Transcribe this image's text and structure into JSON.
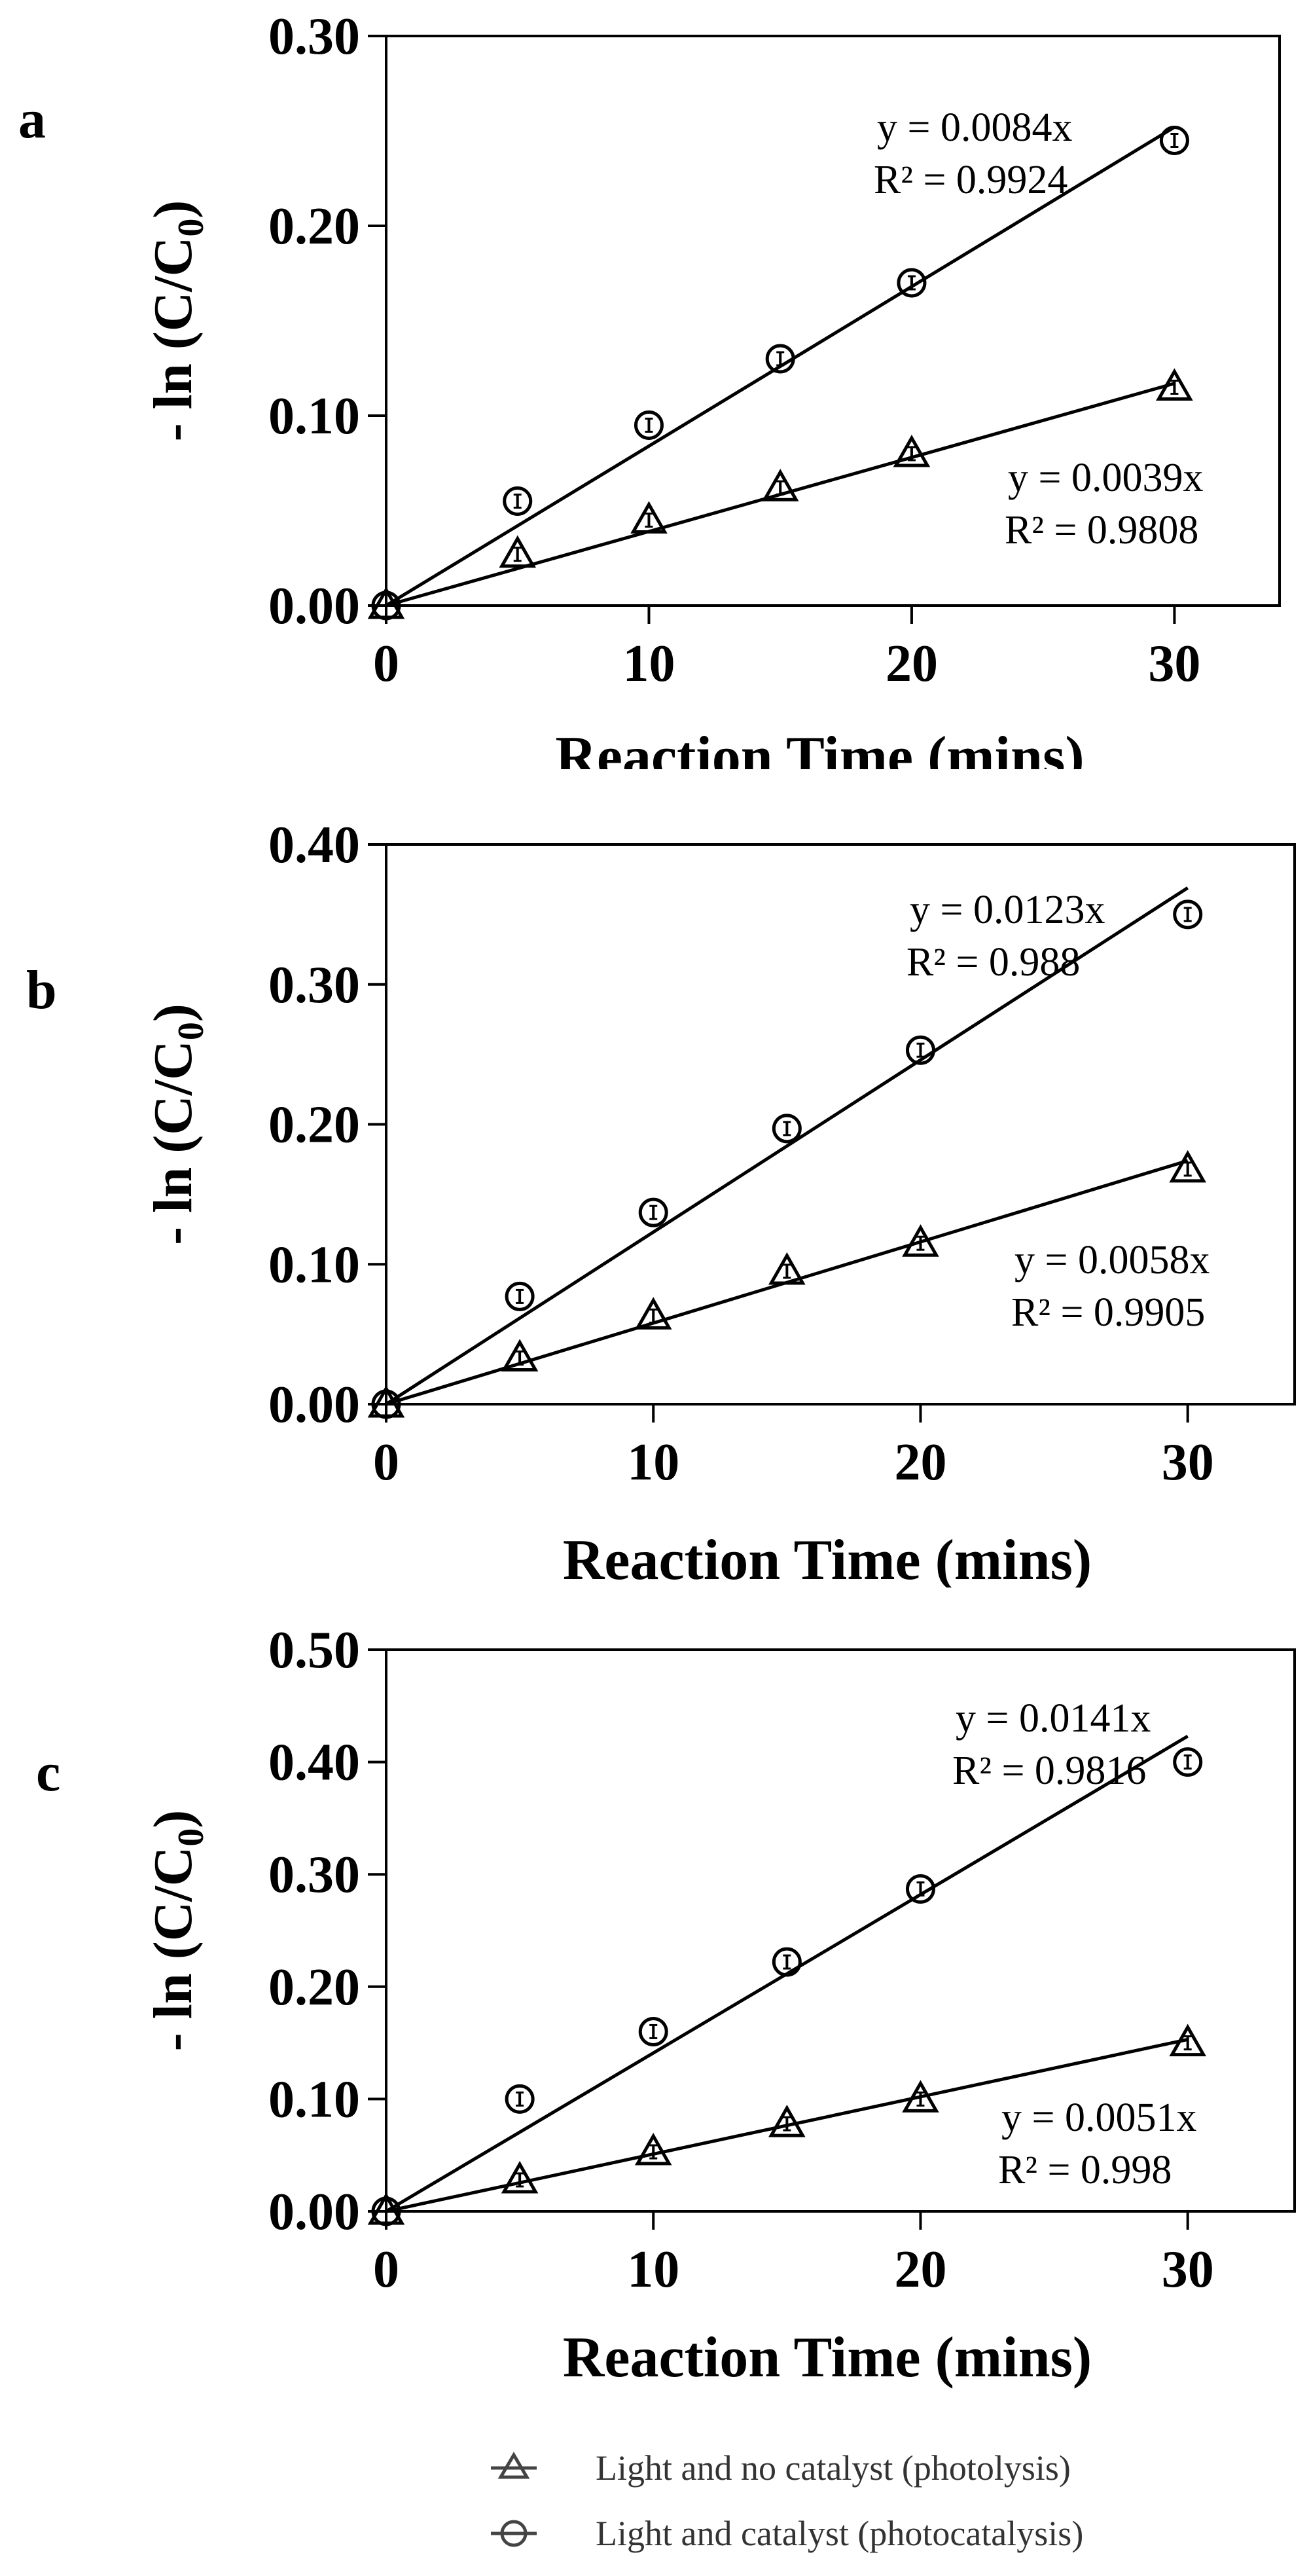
{
  "chart_data": [
    {
      "type": "scatter",
      "panel_label": "a",
      "xlabel": "Reaction Time (mins)",
      "ylabel": "- ln (C/C",
      "ylabel_sub": "0",
      "ylabel_close": ")",
      "xlim": [
        0,
        34
      ],
      "ylim": [
        0,
        0.3
      ],
      "x_ticks": [
        "0",
        "10",
        "20",
        "30"
      ],
      "y_ticks": [
        "0.00",
        "0.10",
        "0.20",
        "0.30"
      ],
      "series": [
        {
          "name": "Light and no catalyst (photolysis)",
          "marker": "triangle",
          "x": [
            0,
            5,
            10,
            15,
            20,
            30
          ],
          "values": [
            0.0,
            0.027,
            0.045,
            0.062,
            0.08,
            0.115
          ],
          "fit": {
            "slope": 0.0039,
            "equation": "y = 0.0039x",
            "r2": "R² = 0.9808"
          }
        },
        {
          "name": "Light and catalyst (photocatalysis)",
          "marker": "circle",
          "x": [
            0,
            5,
            10,
            15,
            20,
            30
          ],
          "values": [
            0.0,
            0.055,
            0.095,
            0.13,
            0.17,
            0.245
          ],
          "fit": {
            "slope": 0.0084,
            "equation": "y = 0.0084x",
            "r2": "R² = 0.9924"
          }
        }
      ]
    },
    {
      "type": "scatter",
      "panel_label": "b",
      "xlabel": "Reaction Time (mins)",
      "ylabel": "- ln (C/C",
      "ylabel_sub": "0",
      "ylabel_close": ")",
      "xlim": [
        0,
        34
      ],
      "ylim": [
        0,
        0.4
      ],
      "x_ticks": [
        "0",
        "10",
        "20",
        "30"
      ],
      "y_ticks": [
        "0.00",
        "0.10",
        "0.20",
        "0.30",
        "0.40"
      ],
      "series": [
        {
          "name": "Light and no catalyst (photolysis)",
          "marker": "triangle",
          "x": [
            0,
            5,
            10,
            15,
            20,
            30
          ],
          "values": [
            0.0,
            0.033,
            0.063,
            0.095,
            0.115,
            0.168
          ],
          "fit": {
            "slope": 0.0058,
            "equation": "y = 0.0058x",
            "r2": "R² = 0.9905"
          }
        },
        {
          "name": "Light and catalyst (photocatalysis)",
          "marker": "circle",
          "x": [
            0,
            5,
            10,
            15,
            20,
            30
          ],
          "values": [
            0.0,
            0.077,
            0.137,
            0.197,
            0.253,
            0.35
          ],
          "fit": {
            "slope": 0.0123,
            "equation": "y = 0.0123x",
            "r2": "R² = 0.988"
          }
        }
      ]
    },
    {
      "type": "scatter",
      "panel_label": "c",
      "xlabel": "Reaction Time (mins)",
      "ylabel": "- ln (C/C",
      "ylabel_sub": "0",
      "ylabel_close": ")",
      "xlim": [
        0,
        34
      ],
      "ylim": [
        0,
        0.5
      ],
      "x_ticks": [
        "0",
        "10",
        "20",
        "30"
      ],
      "y_ticks": [
        "0.00",
        "0.10",
        "0.20",
        "0.30",
        "0.40",
        "0.50"
      ],
      "series": [
        {
          "name": "Light and no catalyst (photolysis)",
          "marker": "triangle",
          "x": [
            0,
            5,
            10,
            15,
            20,
            30
          ],
          "values": [
            0.0,
            0.028,
            0.053,
            0.078,
            0.1,
            0.15
          ],
          "fit": {
            "slope": 0.0051,
            "equation": "y = 0.0051x",
            "r2": "R² = 0.998"
          }
        },
        {
          "name": "Light and catalyst (photocatalysis)",
          "marker": "circle",
          "x": [
            0,
            5,
            10,
            15,
            20,
            30
          ],
          "values": [
            0.0,
            0.1,
            0.16,
            0.222,
            0.287,
            0.4
          ],
          "fit": {
            "slope": 0.0141,
            "equation": "y = 0.0141x",
            "r2": "R² = 0.9816"
          }
        }
      ]
    }
  ],
  "legend": {
    "items": [
      {
        "label": "Light and no catalyst (photolysis)",
        "marker": "triangle"
      },
      {
        "label": "Light and catalyst (photocatalysis)",
        "marker": "circle"
      }
    ]
  }
}
